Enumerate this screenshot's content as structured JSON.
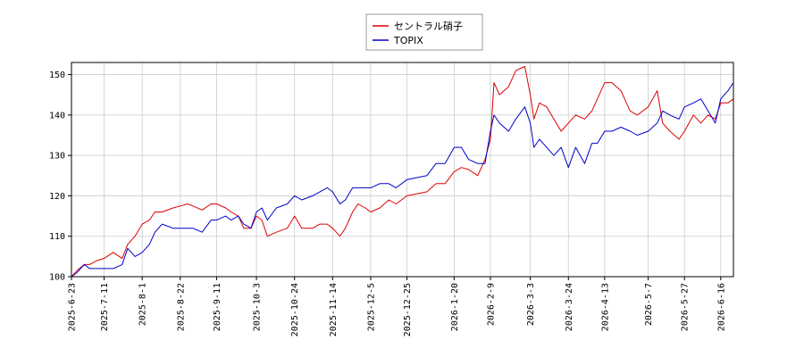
{
  "chart_data": {
    "type": "line",
    "title": "",
    "xlabel": "",
    "ylabel": "",
    "ylim": [
      100,
      153
    ],
    "yticks": [
      100,
      110,
      120,
      130,
      140,
      150
    ],
    "grid": true,
    "legend_position": "top-center",
    "x_start": "2025-6-23",
    "x_end": "2026-6-23",
    "x_ticks": [
      "2025-6-23",
      "2025-7-11",
      "2025-8-1",
      "2025-8-22",
      "2025-9-11",
      "2025-10-3",
      "2025-10-24",
      "2025-11-14",
      "2025-12-5",
      "2025-12-25",
      "2026-1-20",
      "2026-2-9",
      "2026-3-3",
      "2026-3-24",
      "2026-4-13",
      "2026-5-7",
      "2026-5-27",
      "2026-6-16"
    ],
    "series": [
      {
        "name": "セントラル硝子",
        "color": "#dd0000",
        "points": [
          [
            "2025-6-23",
            100
          ],
          [
            "2025-6-26",
            101.5
          ],
          [
            "2025-6-30",
            103
          ],
          [
            "2025-7-3",
            103
          ],
          [
            "2025-7-7",
            104
          ],
          [
            "2025-7-11",
            104.5
          ],
          [
            "2025-7-16",
            106
          ],
          [
            "2025-7-21",
            104.5
          ],
          [
            "2025-7-24",
            108
          ],
          [
            "2025-7-28",
            110
          ],
          [
            "2025-8-1",
            113
          ],
          [
            "2025-8-5",
            114
          ],
          [
            "2025-8-8",
            116
          ],
          [
            "2025-8-12",
            116
          ],
          [
            "2025-8-18",
            117
          ],
          [
            "2025-8-22",
            117.5
          ],
          [
            "2025-8-26",
            118
          ],
          [
            "2025-8-29",
            117.5
          ],
          [
            "2025-9-3",
            116.5
          ],
          [
            "2025-9-8",
            118
          ],
          [
            "2025-9-11",
            118
          ],
          [
            "2025-9-16",
            117
          ],
          [
            "2025-9-19",
            116
          ],
          [
            "2025-9-23",
            115
          ],
          [
            "2025-9-26",
            112
          ],
          [
            "2025-9-30",
            112
          ],
          [
            "2025-10-3",
            115
          ],
          [
            "2025-10-6",
            114
          ],
          [
            "2025-10-9",
            110
          ],
          [
            "2025-10-14",
            111
          ],
          [
            "2025-10-20",
            112
          ],
          [
            "2025-10-24",
            115
          ],
          [
            "2025-10-28",
            112
          ],
          [
            "2025-11-3",
            112
          ],
          [
            "2025-11-7",
            113
          ],
          [
            "2025-11-11",
            113
          ],
          [
            "2025-11-14",
            112
          ],
          [
            "2025-11-18",
            110
          ],
          [
            "2025-11-21",
            112
          ],
          [
            "2025-11-25",
            116
          ],
          [
            "2025-11-28",
            118
          ],
          [
            "2025-12-2",
            117
          ],
          [
            "2025-12-5",
            116
          ],
          [
            "2025-12-10",
            117
          ],
          [
            "2025-12-15",
            119
          ],
          [
            "2025-12-19",
            118
          ],
          [
            "2025-12-25",
            120
          ],
          [
            "2026-1-5",
            121
          ],
          [
            "2026-1-10",
            123
          ],
          [
            "2026-1-15",
            123
          ],
          [
            "2026-1-20",
            126
          ],
          [
            "2026-1-24",
            127
          ],
          [
            "2026-1-28",
            126.5
          ],
          [
            "2026-2-2",
            125
          ],
          [
            "2026-2-6",
            129
          ],
          [
            "2026-2-9",
            134
          ],
          [
            "2026-2-11",
            148
          ],
          [
            "2026-2-14",
            145
          ],
          [
            "2026-2-19",
            147
          ],
          [
            "2026-2-23",
            151
          ],
          [
            "2026-2-28",
            152
          ],
          [
            "2026-3-3",
            145
          ],
          [
            "2026-3-5",
            139
          ],
          [
            "2026-3-8",
            143
          ],
          [
            "2026-3-12",
            142
          ],
          [
            "2026-3-16",
            139
          ],
          [
            "2026-3-20",
            136
          ],
          [
            "2026-3-24",
            138
          ],
          [
            "2026-3-28",
            140
          ],
          [
            "2026-4-2",
            139
          ],
          [
            "2026-4-6",
            141
          ],
          [
            "2026-4-9",
            144
          ],
          [
            "2026-4-13",
            148
          ],
          [
            "2026-4-17",
            148
          ],
          [
            "2026-4-22",
            146
          ],
          [
            "2026-4-27",
            141
          ],
          [
            "2026-5-1",
            140
          ],
          [
            "2026-5-7",
            142
          ],
          [
            "2026-5-12",
            146
          ],
          [
            "2026-5-15",
            138
          ],
          [
            "2026-5-19",
            136
          ],
          [
            "2026-5-24",
            134
          ],
          [
            "2026-5-27",
            136
          ],
          [
            "2026-6-1",
            140
          ],
          [
            "2026-6-5",
            138
          ],
          [
            "2026-6-9",
            140
          ],
          [
            "2026-6-13",
            139
          ],
          [
            "2026-6-16",
            143
          ],
          [
            "2026-6-20",
            143
          ],
          [
            "2026-6-23",
            144
          ]
        ]
      },
      {
        "name": "TOPIX",
        "color": "#0000cc",
        "points": [
          [
            "2025-6-23",
            100
          ],
          [
            "2025-6-26",
            101
          ],
          [
            "2025-6-30",
            103
          ],
          [
            "2025-7-3",
            102
          ],
          [
            "2025-7-7",
            102
          ],
          [
            "2025-7-11",
            102
          ],
          [
            "2025-7-16",
            102
          ],
          [
            "2025-7-21",
            103
          ],
          [
            "2025-7-24",
            107
          ],
          [
            "2025-7-28",
            105
          ],
          [
            "2025-8-1",
            106
          ],
          [
            "2025-8-5",
            108
          ],
          [
            "2025-8-8",
            111
          ],
          [
            "2025-8-12",
            113
          ],
          [
            "2025-8-18",
            112
          ],
          [
            "2025-8-22",
            112
          ],
          [
            "2025-8-26",
            112
          ],
          [
            "2025-8-29",
            112
          ],
          [
            "2025-9-3",
            111
          ],
          [
            "2025-9-8",
            114
          ],
          [
            "2025-9-11",
            114
          ],
          [
            "2025-9-16",
            115
          ],
          [
            "2025-9-19",
            114
          ],
          [
            "2025-9-23",
            115
          ],
          [
            "2025-9-26",
            113
          ],
          [
            "2025-9-30",
            112
          ],
          [
            "2025-10-3",
            116
          ],
          [
            "2025-10-6",
            117
          ],
          [
            "2025-10-9",
            114
          ],
          [
            "2025-10-14",
            117
          ],
          [
            "2025-10-20",
            118
          ],
          [
            "2025-10-24",
            120
          ],
          [
            "2025-10-28",
            119
          ],
          [
            "2025-11-3",
            120
          ],
          [
            "2025-11-7",
            121
          ],
          [
            "2025-11-11",
            122
          ],
          [
            "2025-11-14",
            121
          ],
          [
            "2025-11-18",
            118
          ],
          [
            "2025-11-21",
            119
          ],
          [
            "2025-11-25",
            122
          ],
          [
            "2025-11-28",
            122
          ],
          [
            "2025-12-2",
            122
          ],
          [
            "2025-12-5",
            122
          ],
          [
            "2025-12-10",
            123
          ],
          [
            "2025-12-15",
            123
          ],
          [
            "2025-12-19",
            122
          ],
          [
            "2025-12-25",
            124
          ],
          [
            "2026-1-5",
            125
          ],
          [
            "2026-1-10",
            128
          ],
          [
            "2026-1-15",
            128
          ],
          [
            "2026-1-20",
            132
          ],
          [
            "2026-1-24",
            132
          ],
          [
            "2026-1-28",
            129
          ],
          [
            "2026-2-2",
            128
          ],
          [
            "2026-2-6",
            128
          ],
          [
            "2026-2-9",
            136
          ],
          [
            "2026-2-11",
            140
          ],
          [
            "2026-2-14",
            138
          ],
          [
            "2026-2-19",
            136
          ],
          [
            "2026-2-23",
            139
          ],
          [
            "2026-2-28",
            142
          ],
          [
            "2026-3-3",
            138
          ],
          [
            "2026-3-5",
            132
          ],
          [
            "2026-3-8",
            134
          ],
          [
            "2026-3-12",
            132
          ],
          [
            "2026-3-16",
            130
          ],
          [
            "2026-3-20",
            132
          ],
          [
            "2026-3-24",
            127
          ],
          [
            "2026-3-28",
            132
          ],
          [
            "2026-4-2",
            128
          ],
          [
            "2026-4-6",
            133
          ],
          [
            "2026-4-9",
            133
          ],
          [
            "2026-4-13",
            136
          ],
          [
            "2026-4-17",
            136
          ],
          [
            "2026-4-22",
            137
          ],
          [
            "2026-4-27",
            136
          ],
          [
            "2026-5-1",
            135
          ],
          [
            "2026-5-7",
            136
          ],
          [
            "2026-5-12",
            138
          ],
          [
            "2026-5-15",
            141
          ],
          [
            "2026-5-19",
            140
          ],
          [
            "2026-5-24",
            139
          ],
          [
            "2026-5-27",
            142
          ],
          [
            "2026-6-1",
            143
          ],
          [
            "2026-6-5",
            144
          ],
          [
            "2026-6-9",
            141
          ],
          [
            "2026-6-13",
            138
          ],
          [
            "2026-6-16",
            144
          ],
          [
            "2026-6-20",
            146
          ],
          [
            "2026-6-23",
            148
          ]
        ]
      }
    ]
  }
}
